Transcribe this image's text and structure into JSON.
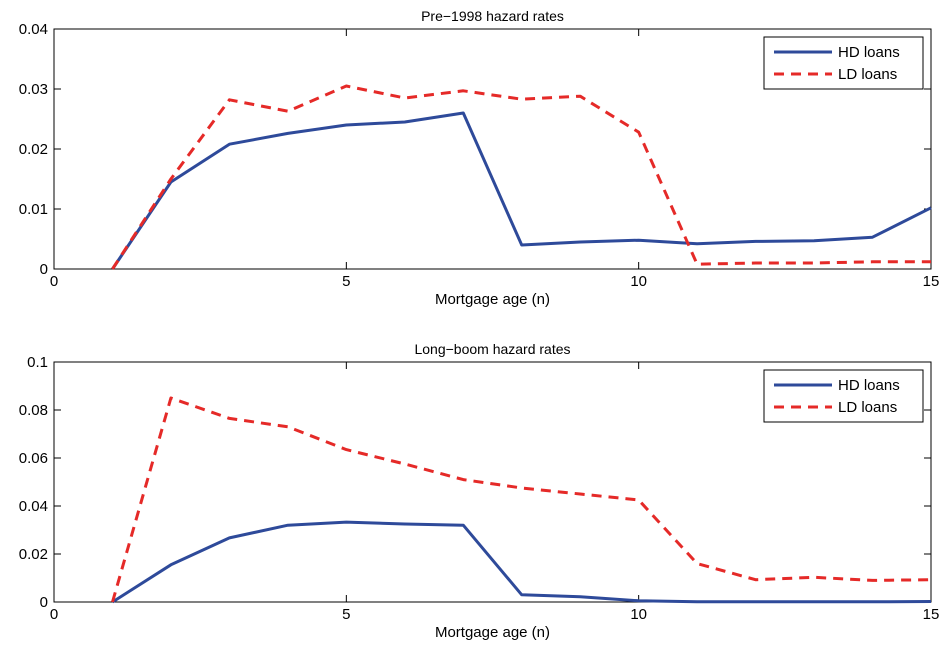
{
  "chart_data": [
    {
      "type": "line",
      "title": "Pre−1998 hazard rates",
      "xlabel": "Mortgage age (n)",
      "ylabel": "",
      "xlim": [
        0,
        15
      ],
      "ylim": [
        0,
        0.04
      ],
      "xticks": [
        0,
        5,
        10,
        15
      ],
      "xtick_labels": [
        "0",
        "5",
        "10",
        "15"
      ],
      "yticks": [
        0,
        0.01,
        0.02,
        0.03,
        0.04
      ],
      "ytick_labels": [
        "0",
        "0.01",
        "0.02",
        "0.03",
        "0.04"
      ],
      "grid": false,
      "legend_position": "top-right",
      "series": [
        {
          "name": "HD loans",
          "color": "#2E4A9A",
          "dash": "solid",
          "x": [
            1,
            2,
            3,
            4,
            5,
            6,
            7,
            8,
            9,
            10,
            11,
            12,
            13,
            14,
            15
          ],
          "values": [
            0,
            0.0145,
            0.0208,
            0.0226,
            0.024,
            0.0245,
            0.026,
            0.004,
            0.0045,
            0.0048,
            0.0042,
            0.0046,
            0.0047,
            0.0053,
            0.0102
          ]
        },
        {
          "name": "LD loans",
          "color": "#E52A28",
          "dash": "dashed",
          "x": [
            1,
            2,
            3,
            4,
            5,
            6,
            7,
            8,
            9,
            10,
            11,
            12,
            13,
            14,
            15
          ],
          "values": [
            0,
            0.015,
            0.0282,
            0.0263,
            0.0305,
            0.0285,
            0.0297,
            0.0283,
            0.0288,
            0.0228,
            0.0008,
            0.001,
            0.001,
            0.0012,
            0.0012
          ]
        }
      ]
    },
    {
      "type": "line",
      "title": "Long−boom hazard rates",
      "xlabel": "Mortgage age (n)",
      "ylabel": "",
      "xlim": [
        0,
        15
      ],
      "ylim": [
        0,
        0.1
      ],
      "xticks": [
        0,
        5,
        10,
        15
      ],
      "xtick_labels": [
        "0",
        "5",
        "10",
        "15"
      ],
      "yticks": [
        0,
        0.02,
        0.04,
        0.06,
        0.08,
        0.1
      ],
      "ytick_labels": [
        "0",
        "0.02",
        "0.04",
        "0.06",
        "0.08",
        "0.1"
      ],
      "grid": false,
      "legend_position": "top-right",
      "series": [
        {
          "name": "HD loans",
          "color": "#2E4A9A",
          "dash": "solid",
          "x": [
            1,
            2,
            3,
            4,
            5,
            6,
            7,
            8,
            9,
            10,
            11,
            12,
            13,
            14,
            15
          ],
          "values": [
            0,
            0.0155,
            0.0267,
            0.032,
            0.0333,
            0.0325,
            0.032,
            0.003,
            0.0022,
            0.0005,
            0.0001,
            0.0001,
            0.0001,
            0.0001,
            0.0002
          ]
        },
        {
          "name": "LD loans",
          "color": "#E52A28",
          "dash": "dashed",
          "x": [
            1,
            2,
            3,
            4,
            5,
            6,
            7,
            8,
            9,
            10,
            11,
            12,
            13,
            14,
            15
          ],
          "values": [
            0,
            0.085,
            0.0765,
            0.073,
            0.0635,
            0.0575,
            0.051,
            0.0475,
            0.045,
            0.0425,
            0.016,
            0.0093,
            0.0103,
            0.009,
            0.0093
          ]
        }
      ]
    }
  ]
}
